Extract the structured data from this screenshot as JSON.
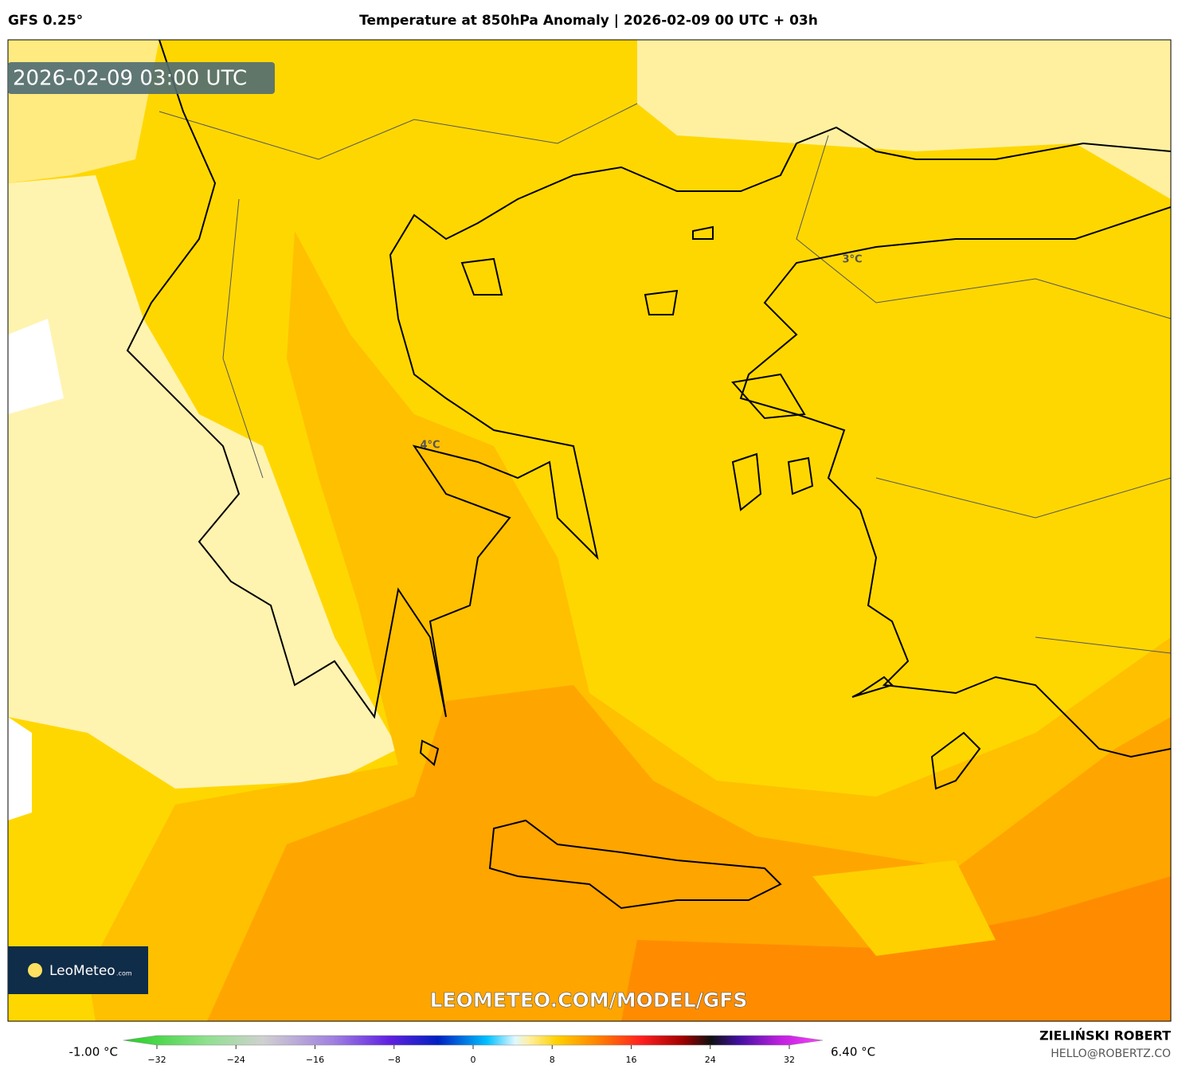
{
  "header": {
    "model": "GFS 0.25°",
    "title": "Temperature at 850hPa Anomaly | 2026-02-09 00 UTC + 03h"
  },
  "map": {
    "timestamp": "2026-02-09 03:00 UTC",
    "labels": [
      "3°C",
      "4°C"
    ],
    "watermark": "LEOMETEO.COM/MODEL/GFS",
    "logo": {
      "name": "LeoMeteo",
      "suffix": ".com"
    }
  },
  "colorbar": {
    "min_label": "-1.00 °C",
    "max_label": "6.40 °C",
    "ticks": [
      {
        "value": -32,
        "label": "−32"
      },
      {
        "value": -24,
        "label": "−24"
      },
      {
        "value": -16,
        "label": "−16"
      },
      {
        "value": -8,
        "label": "−8"
      },
      0,
      8,
      16,
      24,
      32
    ]
  },
  "footer": {
    "author": "ZIELIŃSKI ROBERT",
    "email": "HELLO@ROBERTZ.CO"
  }
}
